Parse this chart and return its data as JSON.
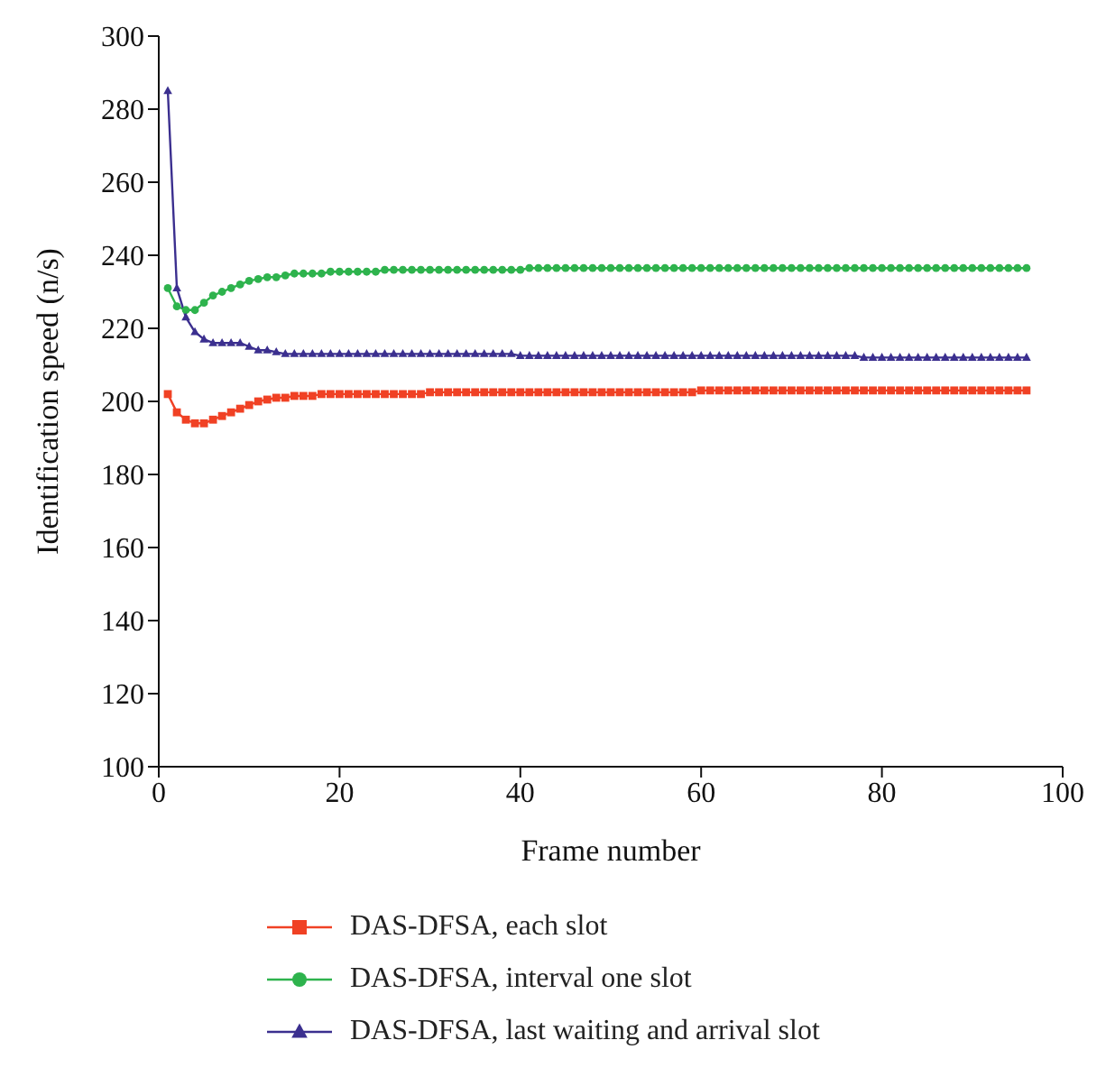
{
  "chart_data": {
    "type": "line",
    "xlabel": "Frame number",
    "ylabel": "Identification speed (n/s)",
    "xlim": [
      0,
      100
    ],
    "xticks": [
      0,
      20,
      40,
      60,
      80,
      100
    ],
    "ylim": [
      100,
      300
    ],
    "yticks": [
      100,
      120,
      140,
      160,
      180,
      200,
      220,
      240,
      260,
      280,
      300
    ],
    "grid": false,
    "legend": "bottom",
    "line_style": "solid",
    "x": [
      1,
      2,
      3,
      4,
      5,
      6,
      7,
      8,
      9,
      10,
      11,
      12,
      13,
      14,
      15,
      16,
      17,
      18,
      19,
      20,
      21,
      22,
      23,
      24,
      25,
      26,
      27,
      28,
      29,
      30,
      31,
      32,
      33,
      34,
      35,
      36,
      37,
      38,
      39,
      40,
      41,
      42,
      43,
      44,
      45,
      46,
      47,
      48,
      49,
      50,
      51,
      52,
      53,
      54,
      55,
      56,
      57,
      58,
      59,
      60,
      61,
      62,
      63,
      64,
      65,
      66,
      67,
      68,
      69,
      70,
      71,
      72,
      73,
      74,
      75,
      76,
      77,
      78,
      79,
      80,
      81,
      82,
      83,
      84,
      85,
      86,
      87,
      88,
      89,
      90,
      91,
      92,
      93,
      94,
      95,
      96
    ],
    "series": [
      {
        "name": "DAS-DFSA, each slot",
        "color": "#f04124",
        "marker": "square",
        "values": [
          202,
          197,
          195,
          194,
          194,
          195,
          196,
          197,
          198,
          199,
          200,
          200.5,
          201,
          201,
          201.5,
          201.5,
          201.5,
          202,
          202,
          202,
          202,
          202,
          202,
          202,
          202,
          202,
          202,
          202,
          202,
          202.5,
          202.5,
          202.5,
          202.5,
          202.5,
          202.5,
          202.5,
          202.5,
          202.5,
          202.5,
          202.5,
          202.5,
          202.5,
          202.5,
          202.5,
          202.5,
          202.5,
          202.5,
          202.5,
          202.5,
          202.5,
          202.5,
          202.5,
          202.5,
          202.5,
          202.5,
          202.5,
          202.5,
          202.5,
          202.5,
          203,
          203,
          203,
          203,
          203,
          203,
          203,
          203,
          203,
          203,
          203,
          203,
          203,
          203,
          203,
          203,
          203,
          203,
          203,
          203,
          203,
          203,
          203,
          203,
          203,
          203,
          203,
          203,
          203,
          203,
          203,
          203,
          203,
          203,
          203,
          203,
          203
        ]
      },
      {
        "name": "DAS-DFSA, interval one slot",
        "color": "#2eb34d",
        "marker": "circle",
        "values": [
          231,
          226,
          225,
          225,
          227,
          229,
          230,
          231,
          232,
          233,
          233.5,
          234,
          234,
          234.5,
          235,
          235,
          235,
          235,
          235.5,
          235.5,
          235.5,
          235.5,
          235.5,
          235.5,
          236,
          236,
          236,
          236,
          236,
          236,
          236,
          236,
          236,
          236,
          236,
          236,
          236,
          236,
          236,
          236,
          236.5,
          236.5,
          236.5,
          236.5,
          236.5,
          236.5,
          236.5,
          236.5,
          236.5,
          236.5,
          236.5,
          236.5,
          236.5,
          236.5,
          236.5,
          236.5,
          236.5,
          236.5,
          236.5,
          236.5,
          236.5,
          236.5,
          236.5,
          236.5,
          236.5,
          236.5,
          236.5,
          236.5,
          236.5,
          236.5,
          236.5,
          236.5,
          236.5,
          236.5,
          236.5,
          236.5,
          236.5,
          236.5,
          236.5,
          236.5,
          236.5,
          236.5,
          236.5,
          236.5,
          236.5,
          236.5,
          236.5,
          236.5,
          236.5,
          236.5,
          236.5,
          236.5,
          236.5,
          236.5,
          236.5,
          236.5
        ]
      },
      {
        "name": "DAS-DFSA, last waiting and arrival slot",
        "color": "#3b2f8f",
        "marker": "triangle",
        "values": [
          285,
          231,
          223,
          219,
          217,
          216,
          216,
          216,
          216,
          215,
          214,
          214,
          213.5,
          213,
          213,
          213,
          213,
          213,
          213,
          213,
          213,
          213,
          213,
          213,
          213,
          213,
          213,
          213,
          213,
          213,
          213,
          213,
          213,
          213,
          213,
          213,
          213,
          213,
          213,
          212.5,
          212.5,
          212.5,
          212.5,
          212.5,
          212.5,
          212.5,
          212.5,
          212.5,
          212.5,
          212.5,
          212.5,
          212.5,
          212.5,
          212.5,
          212.5,
          212.5,
          212.5,
          212.5,
          212.5,
          212.5,
          212.5,
          212.5,
          212.5,
          212.5,
          212.5,
          212.5,
          212.5,
          212.5,
          212.5,
          212.5,
          212.5,
          212.5,
          212.5,
          212.5,
          212.5,
          212.5,
          212.5,
          212,
          212,
          212,
          212,
          212,
          212,
          212,
          212,
          212,
          212,
          212,
          212,
          212,
          212,
          212,
          212,
          212,
          212,
          212
        ]
      }
    ]
  }
}
